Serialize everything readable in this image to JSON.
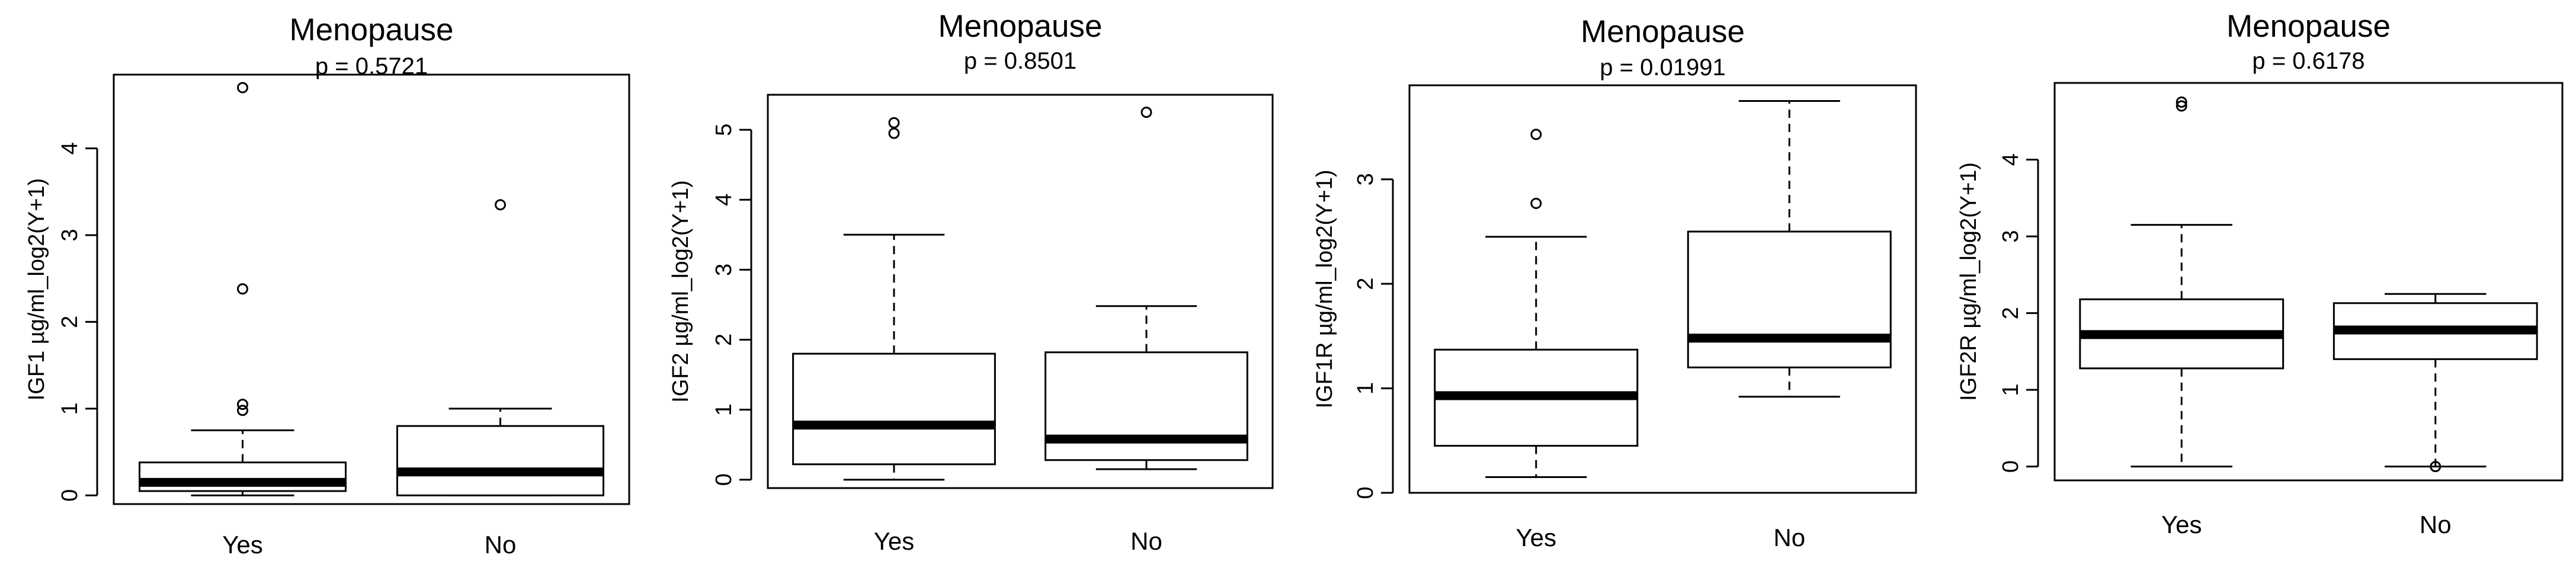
{
  "chart_data": [
    {
      "type": "box",
      "title": "Menopause",
      "subtitle": "p = 0.5721",
      "ylabel": "IGF1 µg/ml_log2(Y+1)",
      "xlabel": "",
      "categories": [
        "Yes",
        "No"
      ],
      "yticks": [
        0,
        1,
        2,
        3,
        4
      ],
      "ylim": [
        -0.1,
        4.85
      ],
      "boxes": [
        {
          "category": "Yes",
          "whisker_low": 0.0,
          "q1": 0.05,
          "median": 0.15,
          "q3": 0.38,
          "whisker_high": 0.75,
          "outliers": [
            0.98,
            1.05,
            2.38,
            4.7
          ]
        },
        {
          "category": "No",
          "whisker_low": 0.0,
          "q1": 0.0,
          "median": 0.27,
          "q3": 0.8,
          "whisker_high": 1.0,
          "outliers": [
            3.35
          ]
        }
      ]
    },
    {
      "type": "box",
      "title": "Menopause",
      "subtitle": "p = 0.8501",
      "ylabel": "IGF2 µg/ml_log2(Y+1)",
      "xlabel": "",
      "categories": [
        "Yes",
        "No"
      ],
      "yticks": [
        0,
        1,
        2,
        3,
        4,
        5
      ],
      "ylim": [
        -0.12,
        5.5
      ],
      "boxes": [
        {
          "category": "Yes",
          "whisker_low": 0.0,
          "q1": 0.22,
          "median": 0.78,
          "q3": 1.8,
          "whisker_high": 3.5,
          "outliers": [
            4.95,
            5.1
          ]
        },
        {
          "category": "No",
          "whisker_low": 0.15,
          "q1": 0.28,
          "median": 0.58,
          "q3": 1.82,
          "whisker_high": 2.48,
          "outliers": [
            5.25
          ]
        }
      ]
    },
    {
      "type": "box",
      "title": "Menopause",
      "subtitle": "p = 0.01991",
      "ylabel": "IGF1R µg/ml_log2(Y+1)",
      "xlabel": "",
      "categories": [
        "Yes",
        "No"
      ],
      "yticks": [
        0,
        1,
        2,
        3
      ],
      "ylim": [
        0.0,
        3.9
      ],
      "boxes": [
        {
          "category": "Yes",
          "whisker_low": 0.15,
          "q1": 0.45,
          "median": 0.93,
          "q3": 1.37,
          "whisker_high": 2.45,
          "outliers": [
            2.77,
            3.43
          ]
        },
        {
          "category": "No",
          "whisker_low": 0.92,
          "q1": 1.2,
          "median": 1.48,
          "q3": 2.5,
          "whisker_high": 3.75,
          "outliers": []
        }
      ]
    },
    {
      "type": "box",
      "title": "Menopause",
      "subtitle": "p = 0.6178",
      "ylabel": "IGF2R µg/ml_log2(Y+1)",
      "xlabel": "",
      "categories": [
        "Yes",
        "No"
      ],
      "yticks": [
        0,
        1,
        2,
        3,
        4
      ],
      "ylim": [
        -0.18,
        5.0
      ],
      "boxes": [
        {
          "category": "Yes",
          "whisker_low": 0.0,
          "q1": 1.28,
          "median": 1.72,
          "q3": 2.18,
          "whisker_high": 3.15,
          "outliers": [
            4.7,
            4.75
          ]
        },
        {
          "category": "No",
          "whisker_low": 0.0,
          "q1": 1.4,
          "median": 1.78,
          "q3": 2.13,
          "whisker_high": 2.25,
          "outliers": [
            0.0
          ]
        }
      ]
    }
  ]
}
